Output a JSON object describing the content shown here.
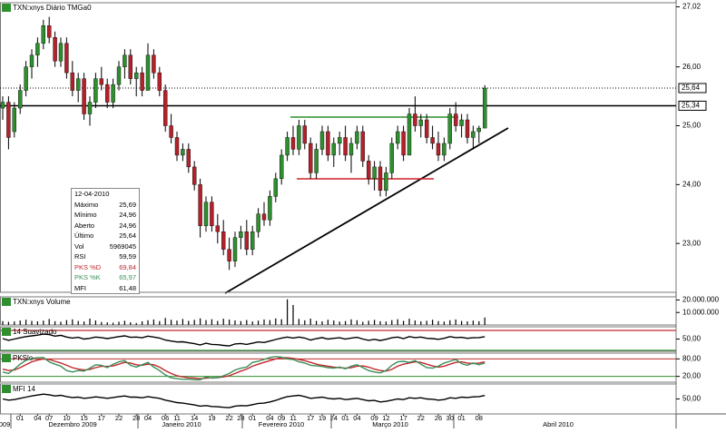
{
  "chart_data": [
    {
      "type": "candlestick",
      "title": "TXN:xnys Diário TMGa0",
      "categories": [
        null,
        null,
        null,
        "01",
        null,
        null,
        "04",
        null,
        "07",
        null,
        null,
        "10",
        null,
        null,
        "15",
        null,
        null,
        "17",
        null,
        null,
        "22",
        null,
        null,
        "28",
        null,
        "04",
        null,
        null,
        "06",
        null,
        "11",
        null,
        null,
        "14",
        null,
        null,
        "19",
        null,
        null,
        "22",
        null,
        "28",
        null,
        "01",
        null,
        null,
        "04",
        null,
        "09",
        null,
        "11",
        null,
        null,
        "17",
        null,
        "19",
        null,
        "24",
        null,
        "01",
        null,
        "04",
        null,
        null,
        "09",
        null,
        "12",
        null,
        null,
        "17",
        null,
        null,
        "22",
        null,
        null,
        "26",
        null,
        "30",
        null,
        "01",
        null,
        null,
        "08",
        null
      ],
      "months": [
        "009",
        "Dezembro 2009",
        "Janeiro 2010",
        "Fevereiro 2010",
        "Março 2010",
        "Abril 2010"
      ],
      "ohlc": [
        [
          25.3,
          25.5,
          25.1,
          25.4
        ],
        [
          25.4,
          25.5,
          24.6,
          24.8
        ],
        [
          24.9,
          25.4,
          24.8,
          25.3
        ],
        [
          25.3,
          25.7,
          25.2,
          25.6
        ],
        [
          25.6,
          26.1,
          25.5,
          26.0
        ],
        [
          26.0,
          26.3,
          25.8,
          26.2
        ],
        [
          26.2,
          26.5,
          26.0,
          26.4
        ],
        [
          26.4,
          26.8,
          26.3,
          26.7
        ],
        [
          26.7,
          26.85,
          26.4,
          26.5
        ],
        [
          26.5,
          26.6,
          26.0,
          26.1
        ],
        [
          26.1,
          26.5,
          26.0,
          26.4
        ],
        [
          26.4,
          26.5,
          25.8,
          25.9
        ],
        [
          25.9,
          26.1,
          25.5,
          25.6
        ],
        [
          25.6,
          25.9,
          25.4,
          25.8
        ],
        [
          25.8,
          25.9,
          25.1,
          25.2
        ],
        [
          25.2,
          25.5,
          25.0,
          25.4
        ],
        [
          25.4,
          25.9,
          25.3,
          25.8
        ],
        [
          25.8,
          26.0,
          25.6,
          25.7
        ],
        [
          25.7,
          25.8,
          25.3,
          25.4
        ],
        [
          25.4,
          25.8,
          25.3,
          25.7
        ],
        [
          25.7,
          26.1,
          25.6,
          26.0
        ],
        [
          26.0,
          26.3,
          25.8,
          26.2
        ],
        [
          26.2,
          26.3,
          25.7,
          25.8
        ],
        [
          25.8,
          26.0,
          25.5,
          25.9
        ],
        [
          25.9,
          26.0,
          25.5,
          25.6
        ],
        [
          25.6,
          26.4,
          25.6,
          26.2
        ],
        [
          26.2,
          26.3,
          25.8,
          25.9
        ],
        [
          25.9,
          26.0,
          25.5,
          25.6
        ],
        [
          25.6,
          25.7,
          24.9,
          25.0
        ],
        [
          25.0,
          25.2,
          24.7,
          24.8
        ],
        [
          24.8,
          24.9,
          24.4,
          24.5
        ],
        [
          24.5,
          24.7,
          24.4,
          24.6
        ],
        [
          24.6,
          24.7,
          24.2,
          24.3
        ],
        [
          24.3,
          24.4,
          23.9,
          24.0
        ],
        [
          24.0,
          24.1,
          23.1,
          23.3
        ],
        [
          23.3,
          23.8,
          23.2,
          23.7
        ],
        [
          23.7,
          23.8,
          23.2,
          23.3
        ],
        [
          23.3,
          23.5,
          23.0,
          23.2
        ],
        [
          23.2,
          23.4,
          22.8,
          22.9
        ],
        [
          22.9,
          23.1,
          22.55,
          22.7
        ],
        [
          22.7,
          23.2,
          22.6,
          23.1
        ],
        [
          23.1,
          23.3,
          22.9,
          23.2
        ],
        [
          23.2,
          23.4,
          22.8,
          22.9
        ],
        [
          22.9,
          23.3,
          22.8,
          23.2
        ],
        [
          23.2,
          23.6,
          23.1,
          23.5
        ],
        [
          23.5,
          23.7,
          23.3,
          23.4
        ],
        [
          23.4,
          23.9,
          23.3,
          23.8
        ],
        [
          23.8,
          24.2,
          23.7,
          24.1
        ],
        [
          24.1,
          24.6,
          24.0,
          24.5
        ],
        [
          24.5,
          24.9,
          24.4,
          24.8
        ],
        [
          24.8,
          25.0,
          24.5,
          24.6
        ],
        [
          24.6,
          25.1,
          24.5,
          25.0
        ],
        [
          25.0,
          25.1,
          24.6,
          24.7
        ],
        [
          24.7,
          24.8,
          24.1,
          24.2
        ],
        [
          24.2,
          24.7,
          24.1,
          24.6
        ],
        [
          24.6,
          25.0,
          24.5,
          24.9
        ],
        [
          24.9,
          25.0,
          24.4,
          24.5
        ],
        [
          24.5,
          24.8,
          24.3,
          24.7
        ],
        [
          24.7,
          24.9,
          24.5,
          24.8
        ],
        [
          24.8,
          25.0,
          24.4,
          24.5
        ],
        [
          24.5,
          24.8,
          24.2,
          24.7
        ],
        [
          24.7,
          25.0,
          24.6,
          24.9
        ],
        [
          24.9,
          25.0,
          24.3,
          24.4
        ],
        [
          24.4,
          24.5,
          24.0,
          24.1
        ],
        [
          24.1,
          24.4,
          23.9,
          24.3
        ],
        [
          24.3,
          24.4,
          23.8,
          23.9
        ],
        [
          23.9,
          24.3,
          23.8,
          24.2
        ],
        [
          24.2,
          24.8,
          24.1,
          24.7
        ],
        [
          24.7,
          25.0,
          24.6,
          24.9
        ],
        [
          24.9,
          25.0,
          24.4,
          24.5
        ],
        [
          24.5,
          25.3,
          24.5,
          25.2
        ],
        [
          25.2,
          25.5,
          24.9,
          25.0
        ],
        [
          25.0,
          25.2,
          24.8,
          25.1
        ],
        [
          25.1,
          25.2,
          24.7,
          24.8
        ],
        [
          24.8,
          25.0,
          24.6,
          24.7
        ],
        [
          24.7,
          24.9,
          24.4,
          24.5
        ],
        [
          24.5,
          24.8,
          24.4,
          24.7
        ],
        [
          24.7,
          25.3,
          24.6,
          25.2
        ],
        [
          25.2,
          25.4,
          24.9,
          25.0
        ],
        [
          25.0,
          25.2,
          24.8,
          25.1
        ],
        [
          25.1,
          25.2,
          24.7,
          24.8
        ],
        [
          24.8,
          25.0,
          24.6,
          24.9
        ],
        [
          24.9,
          25.0,
          24.7,
          24.96
        ],
        [
          24.96,
          25.69,
          24.96,
          25.64
        ]
      ],
      "up_color": "#2f8f2f",
      "down_color": "#b3222a",
      "ylim": [
        22.17,
        27.09
      ],
      "yticks": [
        {
          "value": 27.02,
          "label": "27,02"
        },
        {
          "value": 26,
          "label": "26,00"
        },
        {
          "value": 25,
          "label": "25,00"
        },
        {
          "value": 24,
          "label": "24,00"
        },
        {
          "value": 23,
          "label": "23,00"
        }
      ],
      "hlines": [
        {
          "value": 25.64,
          "label": "25,64",
          "style": "dotted"
        },
        {
          "value": 25.34,
          "label": "25,34",
          "style": "solid"
        }
      ]
    },
    {
      "type": "bar",
      "title": "TXN:xnys Volume",
      "color": "#000000",
      "values": [
        3100000,
        2500000,
        2800000,
        3600000,
        4200000,
        3300000,
        2900000,
        3500000,
        4800000,
        3000000,
        2600000,
        3900000,
        4500000,
        3200000,
        2800000,
        5100000,
        3600000,
        2400000,
        2100000,
        1800000,
        2600000,
        3400000,
        2200000,
        1600000,
        2900000,
        3800000,
        4400000,
        3100000,
        5600000,
        4200000,
        3500000,
        4800000,
        3300000,
        4100000,
        5300000,
        3900000,
        4600000,
        3200000,
        5000000,
        4300000,
        3700000,
        3100000,
        4000000,
        2800000,
        3500000,
        4400000,
        3900000,
        5200000,
        4600000,
        20500000,
        16000000,
        4800000,
        3700000,
        5100000,
        3300000,
        2900000,
        4200000,
        3600000,
        2700000,
        3100000,
        4500000,
        3800000,
        2600000,
        3400000,
        4100000,
        3000000,
        2800000,
        3900000,
        4600000,
        3300000,
        5000000,
        3600000,
        2900000,
        3400000,
        4200000,
        3100000,
        2700000,
        3800000,
        4400000,
        3200000,
        2900000,
        3500000,
        3000000,
        5969045
      ],
      "ylim": [
        0,
        22500000
      ],
      "yticks": [
        {
          "value": 20000000,
          "label": "20.000.000"
        },
        {
          "value": 10000000,
          "label": "10.000.000"
        }
      ]
    },
    {
      "type": "line",
      "title": "14 Suavizado",
      "color": "#000000",
      "values": [
        52,
        45,
        50,
        55,
        60,
        63,
        66,
        70,
        68,
        62,
        65,
        58,
        54,
        57,
        50,
        53,
        58,
        56,
        52,
        56,
        60,
        63,
        57,
        58,
        55,
        62,
        58,
        54,
        46,
        42,
        38,
        39,
        35,
        31,
        26,
        33,
        28,
        27,
        24,
        22,
        30,
        32,
        28,
        33,
        38,
        36,
        42,
        48,
        54,
        58,
        54,
        58,
        54,
        46,
        52,
        56,
        50,
        53,
        55,
        50,
        54,
        57,
        50,
        45,
        49,
        44,
        49,
        55,
        58,
        52,
        60,
        56,
        58,
        53,
        52,
        49,
        53,
        60,
        56,
        57,
        53,
        55,
        56,
        59.59
      ],
      "ylim": [
        0,
        100
      ],
      "yticks": [
        {
          "value": 50,
          "label": "50,00"
        }
      ]
    },
    {
      "type": "line",
      "title": "PKSlo",
      "series": [
        {
          "color": "#c0282d",
          "values": [
            45,
            40,
            42,
            50,
            60,
            70,
            76,
            80,
            78,
            72,
            66,
            58,
            50,
            45,
            42,
            44,
            50,
            55,
            54,
            56,
            62,
            68,
            66,
            60,
            58,
            62,
            60,
            52,
            40,
            30,
            22,
            18,
            15,
            14,
            12,
            14,
            15,
            16,
            18,
            22,
            30,
            38,
            45,
            55,
            62,
            68,
            74,
            80,
            84,
            84,
            82,
            78,
            74,
            68,
            62,
            58,
            55,
            52,
            50,
            48,
            50,
            55,
            56,
            52,
            45,
            40,
            38,
            44,
            55,
            62,
            66,
            70,
            68,
            62,
            56,
            52,
            55,
            62,
            68,
            70,
            66,
            64,
            66,
            69.84
          ]
        },
        {
          "color": "#3a8f5a",
          "values": [
            35,
            30,
            45,
            62,
            75,
            82,
            84,
            85,
            70,
            62,
            55,
            40,
            35,
            40,
            38,
            48,
            60,
            58,
            50,
            62,
            70,
            74,
            58,
            52,
            60,
            68,
            52,
            40,
            25,
            15,
            12,
            10,
            10,
            8,
            8,
            18,
            14,
            15,
            22,
            30,
            42,
            48,
            52,
            68,
            72,
            78,
            85,
            88,
            86,
            80,
            78,
            70,
            66,
            58,
            56,
            54,
            50,
            48,
            52,
            46,
            55,
            60,
            50,
            40,
            35,
            32,
            40,
            58,
            70,
            72,
            68,
            74,
            62,
            50,
            48,
            55,
            66,
            72,
            78,
            64,
            58,
            66,
            60,
            65.97
          ]
        }
      ],
      "ylim": [
        0,
        100
      ],
      "yticks": [
        {
          "value": 80,
          "label": "80,00"
        },
        {
          "value": 20,
          "label": "20,00"
        }
      ]
    },
    {
      "type": "line",
      "title": "MFI 14",
      "color": "#000000",
      "values": [
        50,
        46,
        48,
        52,
        56,
        60,
        63,
        66,
        64,
        60,
        62,
        58,
        55,
        56,
        52,
        54,
        57,
        55,
        52,
        55,
        58,
        60,
        56,
        56,
        54,
        58,
        55,
        52,
        46,
        42,
        38,
        36,
        33,
        30,
        26,
        28,
        25,
        24,
        22,
        21,
        26,
        28,
        27,
        31,
        35,
        36,
        40,
        45,
        52,
        58,
        60,
        62,
        58,
        52,
        54,
        56,
        52,
        50,
        52,
        48,
        50,
        52,
        48,
        44,
        45,
        40,
        42,
        46,
        50,
        48,
        54,
        52,
        54,
        50,
        49,
        46,
        48,
        54,
        52,
        56,
        55,
        57,
        58,
        61.48
      ],
      "ylim": [
        0,
        100
      ],
      "yticks": [
        {
          "value": 50,
          "label": "50,00"
        }
      ]
    }
  ],
  "info": {
    "date": "12-04-2010",
    "rows": [
      [
        "Máximo",
        "25,69"
      ],
      [
        "Mínimo",
        "24,96"
      ],
      [
        "Aberto",
        "24,96"
      ],
      [
        "Último",
        "25,64"
      ],
      [
        "Vol",
        "5969045"
      ],
      [
        "RSI",
        "59,59"
      ],
      [
        "PKS %D",
        "69,84"
      ],
      [
        "PKS %K",
        "65,97"
      ],
      [
        "MFI",
        "61,48"
      ]
    ]
  }
}
